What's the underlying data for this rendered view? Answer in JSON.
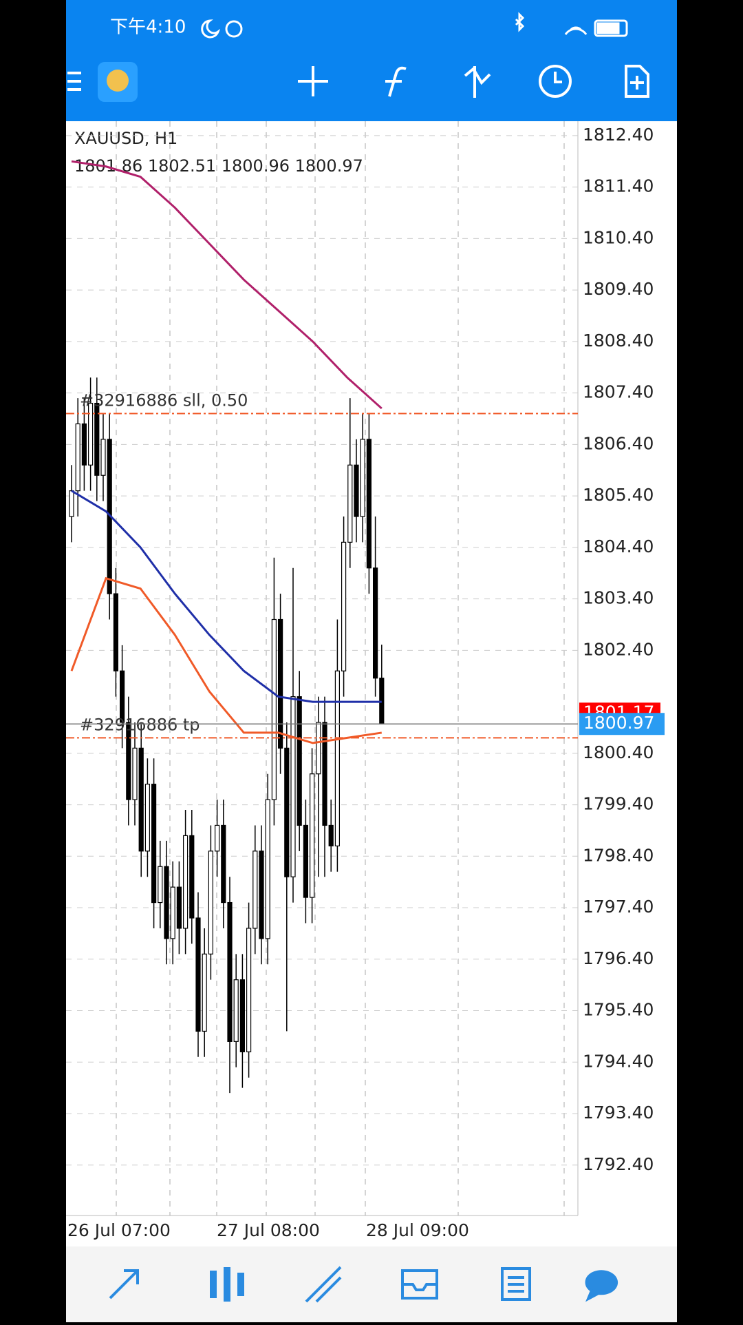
{
  "status_bar": {
    "time": "下午4:10"
  },
  "chart": {
    "symbol": "XAUUSD, H1",
    "ohlc": "1801.86 1802.51 1800.96 1800.97",
    "ylim": [
      1791.42,
      1812.68
    ],
    "yticks": [
      {
        "value": 1812.4,
        "label": "1812.40"
      },
      {
        "value": 1811.4,
        "label": "1811.40"
      },
      {
        "value": 1810.4,
        "label": "1810.40"
      },
      {
        "value": 1809.4,
        "label": "1809.40"
      },
      {
        "value": 1808.4,
        "label": "1808.40"
      },
      {
        "value": 1807.4,
        "label": "1807.40"
      },
      {
        "value": 1806.4,
        "label": "1806.40"
      },
      {
        "value": 1805.4,
        "label": "1805.40"
      },
      {
        "value": 1804.4,
        "label": "1804.40"
      },
      {
        "value": 1803.4,
        "label": "1803.40"
      },
      {
        "value": 1802.4,
        "label": "1802.40"
      },
      {
        "value": 1800.4,
        "label": "1800.40"
      },
      {
        "value": 1799.4,
        "label": "1799.40"
      },
      {
        "value": 1798.4,
        "label": "1798.40"
      },
      {
        "value": 1797.4,
        "label": "1797.40"
      },
      {
        "value": 1796.4,
        "label": "1796.40"
      },
      {
        "value": 1795.4,
        "label": "1795.40"
      },
      {
        "value": 1794.4,
        "label": "1794.40"
      },
      {
        "value": 1793.4,
        "label": "1793.40"
      },
      {
        "value": 1792.4,
        "label": "1792.40"
      }
    ],
    "time_labels": [
      "26 Jul 07:00",
      "27 Jul 08:00",
      "28 Jul 09:00"
    ],
    "candles": [
      [
        1805.0,
        1806.0,
        1804.5,
        1805.5
      ],
      [
        1805.5,
        1807.3,
        1805.0,
        1806.8
      ],
      [
        1806.8,
        1807.3,
        1805.5,
        1806.0
      ],
      [
        1806.0,
        1807.7,
        1805.5,
        1807.2
      ],
      [
        1807.2,
        1807.7,
        1805.3,
        1805.8
      ],
      [
        1805.8,
        1807.0,
        1805.3,
        1806.5
      ],
      [
        1806.5,
        1807.0,
        1803.0,
        1803.5
      ],
      [
        1803.5,
        1804.0,
        1801.5,
        1802.0
      ],
      [
        1802.0,
        1802.5,
        1800.5,
        1801.0
      ],
      [
        1801.0,
        1801.5,
        1799.0,
        1799.5
      ],
      [
        1799.5,
        1801.0,
        1799.0,
        1800.5
      ],
      [
        1800.5,
        1801.0,
        1798.0,
        1798.5
      ],
      [
        1798.5,
        1800.3,
        1798.0,
        1799.8
      ],
      [
        1799.8,
        1800.3,
        1797.0,
        1797.5
      ],
      [
        1797.5,
        1798.7,
        1797.0,
        1798.2
      ],
      [
        1798.2,
        1798.7,
        1796.3,
        1796.8
      ],
      [
        1796.8,
        1798.3,
        1796.3,
        1797.8
      ],
      [
        1797.8,
        1798.3,
        1796.5,
        1797.0
      ],
      [
        1797.0,
        1799.3,
        1796.5,
        1798.8
      ],
      [
        1798.8,
        1799.3,
        1796.7,
        1797.2
      ],
      [
        1797.2,
        1797.7,
        1794.5,
        1795.0
      ],
      [
        1795.0,
        1797.0,
        1794.5,
        1796.5
      ],
      [
        1796.5,
        1799.0,
        1796.0,
        1798.5
      ],
      [
        1798.5,
        1799.5,
        1798.0,
        1799.0
      ],
      [
        1799.0,
        1799.5,
        1797.0,
        1797.5
      ],
      [
        1797.5,
        1798.0,
        1793.8,
        1794.8
      ],
      [
        1794.8,
        1796.5,
        1794.3,
        1796.0
      ],
      [
        1796.0,
        1796.5,
        1793.9,
        1794.6
      ],
      [
        1794.6,
        1797.5,
        1794.1,
        1797.0
      ],
      [
        1797.0,
        1799.0,
        1796.5,
        1798.5
      ],
      [
        1798.5,
        1799.0,
        1796.3,
        1796.8
      ],
      [
        1796.8,
        1800.0,
        1796.3,
        1799.5
      ],
      [
        1799.5,
        1804.2,
        1799.0,
        1803.0
      ],
      [
        1803.0,
        1803.5,
        1800.0,
        1800.5
      ],
      [
        1800.5,
        1801.0,
        1795.0,
        1798.0
      ],
      [
        1798.0,
        1804.0,
        1797.5,
        1801.5
      ],
      [
        1801.5,
        1802.0,
        1798.5,
        1799.0
      ],
      [
        1799.0,
        1799.5,
        1797.1,
        1797.6
      ],
      [
        1797.6,
        1800.5,
        1797.1,
        1800.0
      ],
      [
        1800.0,
        1801.5,
        1798.0,
        1801.0
      ],
      [
        1801.0,
        1801.5,
        1798.0,
        1799.0
      ],
      [
        1799.0,
        1799.5,
        1798.1,
        1798.6
      ],
      [
        1798.6,
        1803.0,
        1798.1,
        1802.0
      ],
      [
        1802.0,
        1805.0,
        1801.5,
        1804.5
      ],
      [
        1804.5,
        1807.3,
        1804.0,
        1806.0
      ],
      [
        1806.0,
        1806.5,
        1804.5,
        1805.0
      ],
      [
        1805.0,
        1807.0,
        1804.5,
        1806.5
      ],
      [
        1806.5,
        1807.0,
        1803.5,
        1804.0
      ],
      [
        1804.0,
        1805.0,
        1801.5,
        1801.86
      ],
      [
        1801.86,
        1802.51,
        1800.96,
        1800.97
      ]
    ],
    "moving_averages": [
      {
        "color": "#b0206a",
        "values": [
          1811.9,
          1811.8,
          1811.6,
          1811.0,
          1810.3,
          1809.6,
          1809.0,
          1808.4,
          1807.7,
          1807.1
        ]
      },
      {
        "color": "#1f2fa8",
        "values": [
          1805.5,
          1805.1,
          1804.4,
          1803.5,
          1802.7,
          1802.0,
          1801.5,
          1801.4,
          1801.4,
          1801.4
        ]
      },
      {
        "color": "#f05a28",
        "values": [
          1802.0,
          1803.8,
          1803.6,
          1802.7,
          1801.6,
          1800.8,
          1800.8,
          1800.6,
          1800.7,
          1800.8
        ]
      }
    ],
    "orders": [
      {
        "label": "#32916886 sll, 0.50",
        "price": 1807.0,
        "color": "#f05a28"
      },
      {
        "label": "#32916886 tp",
        "price": 1800.7,
        "color": "#f05a28"
      }
    ],
    "ask": 1801.17,
    "bid": 1800.97
  }
}
